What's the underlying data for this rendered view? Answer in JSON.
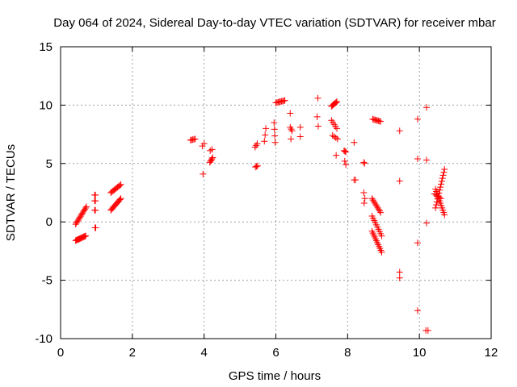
{
  "chart_data": {
    "type": "scatter",
    "title": "Day 064 of 2024, Sidereal Day-to-day VTEC variation (SDTVAR) for receiver mbar",
    "xlabel": "GPS time / hours",
    "ylabel": "SDTVAR / TECUs",
    "xlim": [
      0,
      12
    ],
    "ylim": [
      -10,
      15
    ],
    "xticks": [
      0,
      2,
      4,
      6,
      8,
      10,
      12
    ],
    "xtick_labels": [
      "0",
      "2",
      "4",
      "6",
      "8",
      "10",
      "12"
    ],
    "yticks": [
      -10,
      -5,
      0,
      5,
      10,
      15
    ],
    "ytick_labels": [
      "-10",
      "-5",
      "0",
      "5",
      "10",
      "15"
    ],
    "grid": true,
    "marker": "+",
    "color": "#ff0000",
    "segments": [
      {
        "x0": 0.42,
        "x1": 0.7,
        "y0": -1.6,
        "y1": -1.2,
        "n": 14
      },
      {
        "x0": 0.42,
        "x1": 0.72,
        "y0": -0.2,
        "y1": 1.3,
        "n": 14
      },
      {
        "x0": 0.95,
        "x1": 0.97,
        "y0": 2.3,
        "y1": 2.3,
        "n": 2
      },
      {
        "x0": 0.95,
        "x1": 0.97,
        "y0": 1.8,
        "y1": 1.8,
        "n": 2
      },
      {
        "x0": 0.95,
        "x1": 0.97,
        "y0": 1.0,
        "y1": 1.0,
        "n": 2
      },
      {
        "x0": 0.96,
        "x1": 0.98,
        "y0": -0.5,
        "y1": -0.5,
        "n": 2
      },
      {
        "x0": 1.4,
        "x1": 1.68,
        "y0": 2.5,
        "y1": 3.2,
        "n": 10
      },
      {
        "x0": 1.4,
        "x1": 1.68,
        "y0": 1.0,
        "y1": 2.0,
        "n": 12
      },
      {
        "x0": 3.62,
        "x1": 3.75,
        "y0": 7.0,
        "y1": 7.1,
        "n": 5
      },
      {
        "x0": 3.95,
        "x1": 4.0,
        "y0": 6.5,
        "y1": 6.7,
        "n": 2
      },
      {
        "x0": 3.97,
        "x1": 3.97,
        "y0": 4.1,
        "y1": 4.1,
        "n": 1
      },
      {
        "x0": 4.17,
        "x1": 4.22,
        "y0": 6.1,
        "y1": 6.2,
        "n": 2
      },
      {
        "x0": 4.16,
        "x1": 4.24,
        "y0": 5.1,
        "y1": 5.5,
        "n": 5
      },
      {
        "x0": 5.42,
        "x1": 5.48,
        "y0": 6.4,
        "y1": 6.7,
        "n": 3
      },
      {
        "x0": 5.43,
        "x1": 5.49,
        "y0": 4.7,
        "y1": 4.8,
        "n": 3
      },
      {
        "x0": 5.68,
        "x1": 5.72,
        "y0": 6.9,
        "y1": 8.0,
        "n": 3
      },
      {
        "x0": 5.95,
        "x1": 5.98,
        "y0": 8.5,
        "y1": 6.8,
        "n": 4
      },
      {
        "x0": 6.0,
        "x1": 6.25,
        "y0": 10.2,
        "y1": 10.4,
        "n": 9
      },
      {
        "x0": 6.4,
        "x1": 6.45,
        "y0": 9.3,
        "y1": 9.3,
        "n": 1
      },
      {
        "x0": 6.4,
        "x1": 6.45,
        "y0": 8.1,
        "y1": 7.8,
        "n": 3
      },
      {
        "x0": 6.42,
        "x1": 6.42,
        "y0": 7.1,
        "y1": 7.1,
        "n": 1
      },
      {
        "x0": 6.68,
        "x1": 6.68,
        "y0": 8.1,
        "y1": 8.1,
        "n": 1
      },
      {
        "x0": 6.68,
        "x1": 6.68,
        "y0": 7.3,
        "y1": 7.3,
        "n": 1
      },
      {
        "x0": 7.17,
        "x1": 7.17,
        "y0": 10.6,
        "y1": 10.6,
        "n": 1
      },
      {
        "x0": 7.15,
        "x1": 7.18,
        "y0": 9.0,
        "y1": 8.2,
        "n": 2
      },
      {
        "x0": 7.55,
        "x1": 7.7,
        "y0": 9.9,
        "y1": 10.3,
        "n": 7
      },
      {
        "x0": 7.55,
        "x1": 7.7,
        "y0": 8.7,
        "y1": 8.0,
        "n": 5
      },
      {
        "x0": 7.58,
        "x1": 7.72,
        "y0": 7.4,
        "y1": 7.1,
        "n": 4
      },
      {
        "x0": 7.68,
        "x1": 7.7,
        "y0": 5.7,
        "y1": 5.7,
        "n": 1
      },
      {
        "x0": 7.9,
        "x1": 7.95,
        "y0": 6.1,
        "y1": 6.0,
        "n": 3
      },
      {
        "x0": 7.92,
        "x1": 7.95,
        "y0": 5.2,
        "y1": 4.9,
        "n": 2
      },
      {
        "x0": 8.18,
        "x1": 8.18,
        "y0": 6.8,
        "y1": 6.8,
        "n": 1
      },
      {
        "x0": 8.18,
        "x1": 8.22,
        "y0": 3.6,
        "y1": 3.6,
        "n": 2
      },
      {
        "x0": 8.45,
        "x1": 8.47,
        "y0": 5.1,
        "y1": 5.0,
        "n": 2
      },
      {
        "x0": 8.45,
        "x1": 8.48,
        "y0": 2.5,
        "y1": 2.0,
        "n": 2
      },
      {
        "x0": 8.46,
        "x1": 8.46,
        "y0": 1.6,
        "y1": 1.6,
        "n": 1
      },
      {
        "x0": 8.7,
        "x1": 8.92,
        "y0": 8.8,
        "y1": 8.6,
        "n": 8
      },
      {
        "x0": 8.68,
        "x1": 8.92,
        "y0": 2.0,
        "y1": 0.8,
        "n": 10
      },
      {
        "x0": 8.68,
        "x1": 8.95,
        "y0": 0.5,
        "y1": -1.2,
        "n": 10
      },
      {
        "x0": 8.68,
        "x1": 8.95,
        "y0": -0.8,
        "y1": -2.6,
        "n": 12
      },
      {
        "x0": 9.45,
        "x1": 9.45,
        "y0": 7.8,
        "y1": 7.8,
        "n": 1
      },
      {
        "x0": 9.45,
        "x1": 9.45,
        "y0": 3.5,
        "y1": 3.5,
        "n": 1
      },
      {
        "x0": 9.45,
        "x1": 9.45,
        "y0": -4.3,
        "y1": -4.8,
        "n": 2
      },
      {
        "x0": 9.95,
        "x1": 9.95,
        "y0": 8.8,
        "y1": 8.8,
        "n": 1
      },
      {
        "x0": 9.95,
        "x1": 9.95,
        "y0": 5.4,
        "y1": 5.4,
        "n": 1
      },
      {
        "x0": 9.95,
        "x1": 9.95,
        "y0": -1.8,
        "y1": -1.8,
        "n": 1
      },
      {
        "x0": 9.95,
        "x1": 9.95,
        "y0": -7.6,
        "y1": -7.6,
        "n": 1
      },
      {
        "x0": 10.2,
        "x1": 10.2,
        "y0": 9.8,
        "y1": 9.8,
        "n": 1
      },
      {
        "x0": 10.2,
        "x1": 10.2,
        "y0": 5.3,
        "y1": 5.3,
        "n": 1
      },
      {
        "x0": 10.2,
        "x1": 10.2,
        "y0": -0.1,
        "y1": -0.1,
        "n": 1
      },
      {
        "x0": 10.18,
        "x1": 10.24,
        "y0": -9.3,
        "y1": -9.3,
        "n": 2
      },
      {
        "x0": 10.45,
        "x1": 10.7,
        "y0": 1.2,
        "y1": 4.5,
        "n": 14
      },
      {
        "x0": 10.45,
        "x1": 10.7,
        "y0": 2.8,
        "y1": 0.6,
        "n": 12
      },
      {
        "x0": 10.42,
        "x1": 10.6,
        "y0": 2.4,
        "y1": 2.0,
        "n": 5
      }
    ]
  }
}
